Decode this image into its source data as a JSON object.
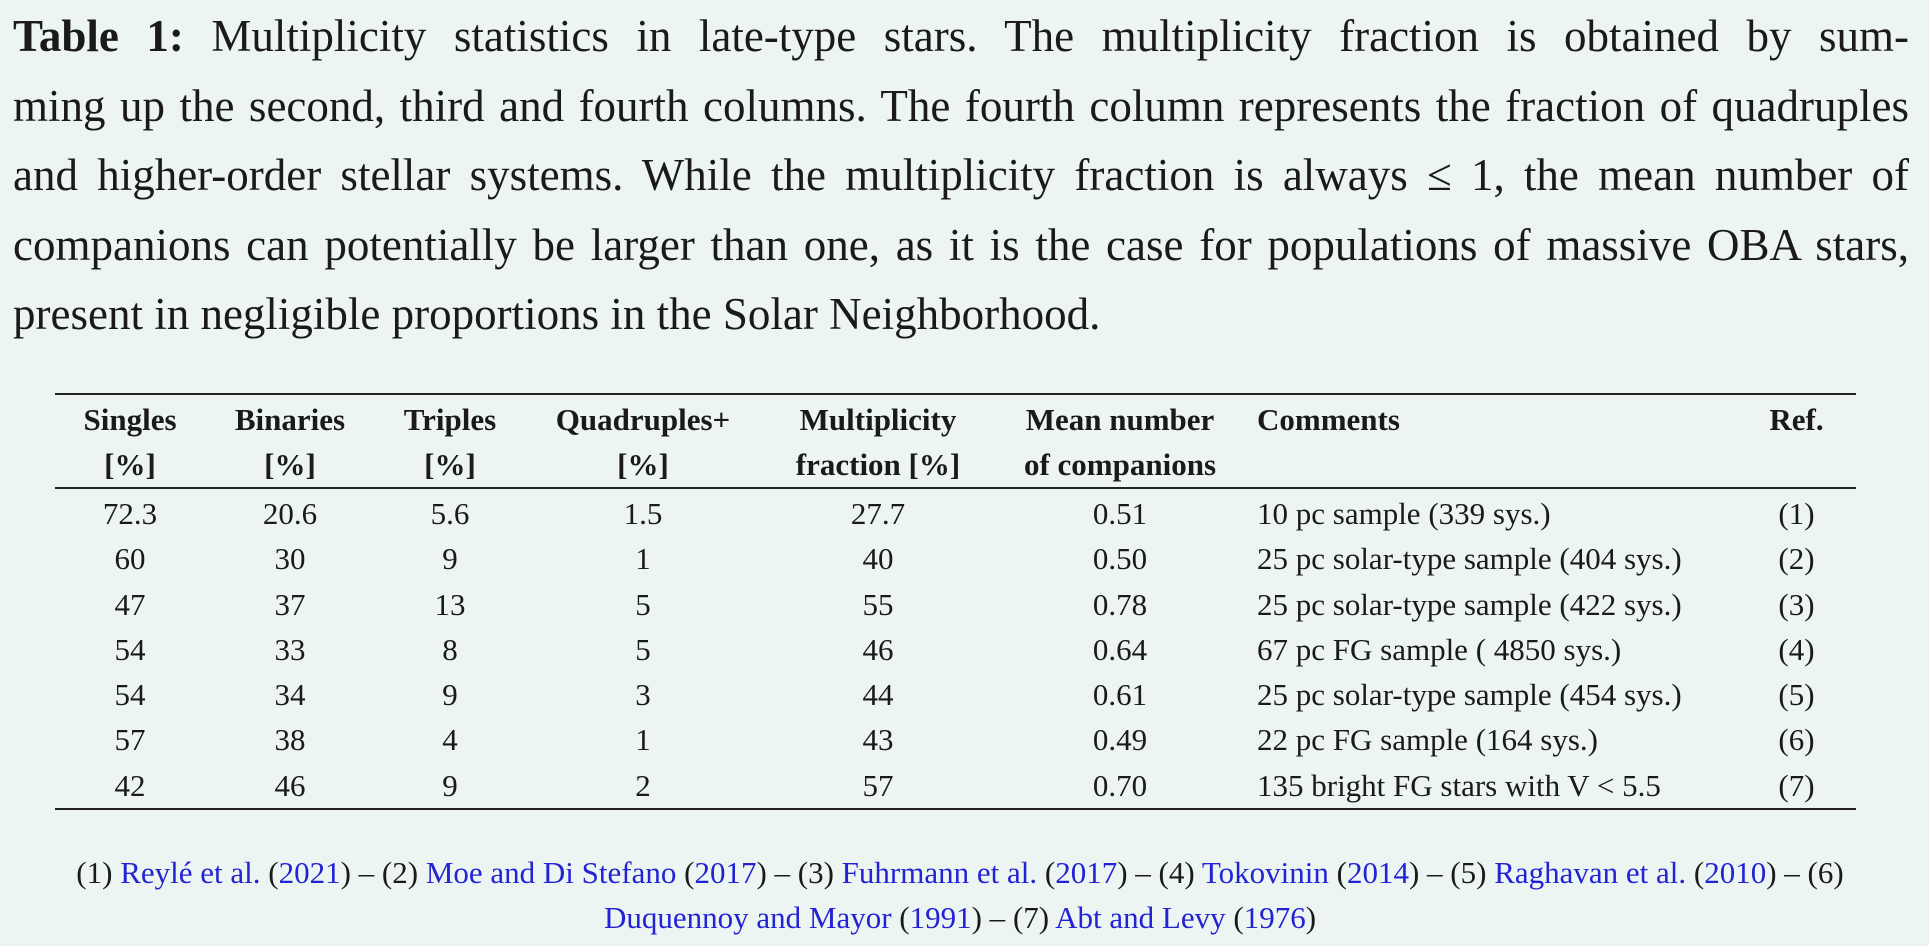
{
  "caption": {
    "label": "Table 1:",
    "line1": "Multiplicity statistics in late-type stars. The multiplicity fraction is obtained by sum-",
    "rest": "ming up the second, third and fourth columns. The fourth column represents the fraction of quadruples and higher-order stellar systems. While the multiplicity fraction is always ≤ 1, the mean number of companions can potentially be larger than one, as it is the case for populations of massive OBA stars, present in negligible proportions in the Solar Neighborhood."
  },
  "table": {
    "headers": {
      "singles": [
        "Singles",
        "[%]"
      ],
      "binaries": [
        "Binaries",
        "[%]"
      ],
      "triples": [
        "Triples",
        "[%]"
      ],
      "quadruples": [
        "Quadruples+",
        "[%]"
      ],
      "multiplicity": [
        "Multiplicity",
        "fraction [%]"
      ],
      "mean": [
        "Mean number",
        "of companions"
      ],
      "comments": [
        "Comments",
        ""
      ],
      "ref": [
        "Ref.",
        ""
      ]
    },
    "rows": [
      [
        "72.3",
        "20.6",
        "5.6",
        "1.5",
        "27.7",
        "0.51",
        "10 pc sample (339 sys.)",
        "(1)"
      ],
      [
        "60",
        "30",
        "9",
        "1",
        "40",
        "0.50",
        "25 pc solar-type sample (404 sys.)",
        "(2)"
      ],
      [
        "47",
        "37",
        "13",
        "5",
        "55",
        "0.78",
        "25 pc solar-type sample (422 sys.)",
        "(3)"
      ],
      [
        "54",
        "33",
        "8",
        "5",
        "46",
        "0.64",
        "67 pc FG sample ( 4850 sys.)",
        "(4)"
      ],
      [
        "54",
        "34",
        "9",
        "3",
        "44",
        "0.61",
        "25 pc solar-type sample (454 sys.)",
        "(5)"
      ],
      [
        "57",
        "38",
        "4",
        "1",
        "43",
        "0.49",
        "22 pc FG sample (164 sys.)",
        "(6)"
      ],
      [
        "42",
        "46",
        "9",
        "2",
        "57",
        "0.70",
        "135 bright FG stars with V < 5.5",
        "(7)"
      ]
    ]
  },
  "references": [
    {
      "num": "(1)",
      "author": "Reylé et al.",
      "year": "2021"
    },
    {
      "num": "(2)",
      "author": "Moe and Di Stefano",
      "year": "2017"
    },
    {
      "num": "(3)",
      "author": "Fuhrmann et al.",
      "year": "2017"
    },
    {
      "num": "(4)",
      "author": "Tokovinin",
      "year": "2014"
    },
    {
      "num": "(5)",
      "author": "Raghavan et al.",
      "year": "2010"
    },
    {
      "num": "(6)",
      "author": "Duquennoy and Mayor",
      "year": "1991"
    },
    {
      "num": "(7)",
      "author": "Abt and Levy",
      "year": "1976"
    }
  ],
  "colors": {
    "background": "#ecf5f1",
    "link": "#2323d6",
    "text": "#1a1a1a"
  }
}
